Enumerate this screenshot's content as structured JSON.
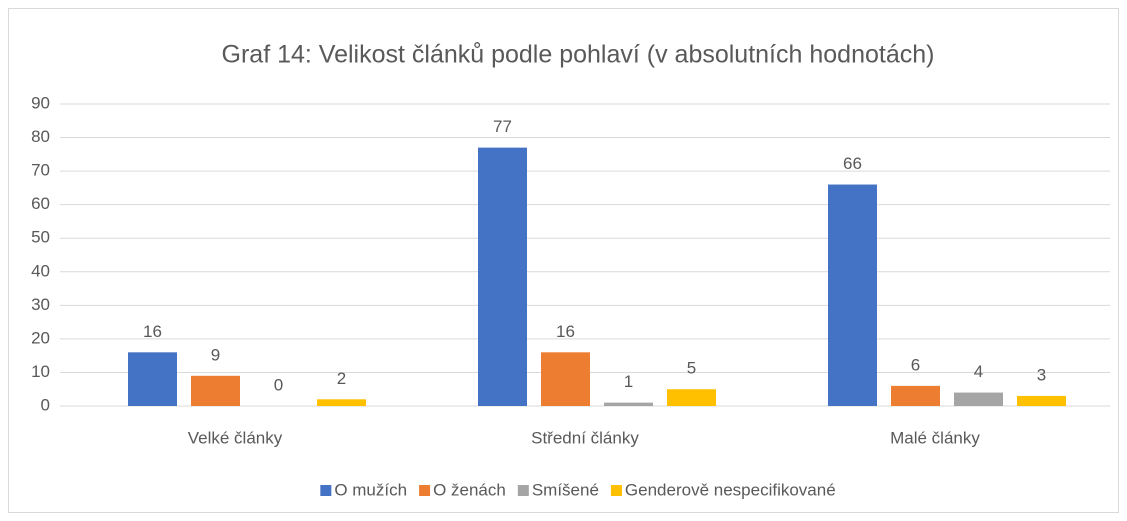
{
  "chart_data": {
    "type": "bar",
    "title": "Graf 14: Velikost článků podle pohlaví (v absolutních hodnotách)",
    "categories": [
      "Velké články",
      "Střední články",
      "Malé články"
    ],
    "series": [
      {
        "name": "O mužích",
        "color": "#4472c4",
        "values": [
          16,
          77,
          66
        ]
      },
      {
        "name": "O ženách",
        "color": "#ed7d31",
        "values": [
          9,
          16,
          6
        ]
      },
      {
        "name": "Smíšené",
        "color": "#a5a5a5",
        "values": [
          0,
          1,
          4
        ]
      },
      {
        "name": "Genderově nespecifikované",
        "color": "#ffc000",
        "values": [
          2,
          5,
          3
        ]
      }
    ],
    "ylim": [
      0,
      90
    ],
    "yticks": [
      0,
      10,
      20,
      30,
      40,
      50,
      60,
      70,
      80,
      90
    ],
    "grid": true,
    "legend": "bottom"
  }
}
